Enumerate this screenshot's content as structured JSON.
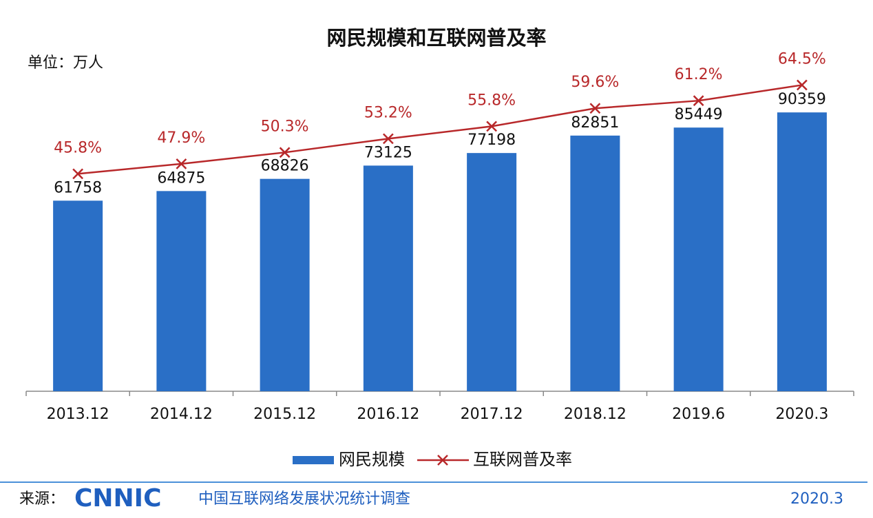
{
  "chart_data": {
    "type": "bar",
    "title": "网民规模和互联网普及率",
    "unit_label": "单位：万人",
    "categories": [
      "2013.12",
      "2014.12",
      "2015.12",
      "2016.12",
      "2017.12",
      "2018.12",
      "2019.6",
      "2020.3"
    ],
    "series": [
      {
        "name": "网民规模",
        "type": "bar",
        "color": "#2a6fc6",
        "values": [
          61758,
          64875,
          68826,
          73125,
          77198,
          82851,
          85449,
          90359
        ]
      },
      {
        "name": "互联网普及率",
        "type": "line",
        "axis": "y2",
        "color": "#b8282a",
        "values": [
          45.8,
          47.9,
          50.3,
          53.2,
          55.8,
          59.6,
          61.2,
          64.5
        ],
        "value_labels": [
          "45.8%",
          "47.9%",
          "50.3%",
          "53.2%",
          "55.8%",
          "59.6%",
          "61.2%",
          "64.5%"
        ]
      }
    ],
    "ylim": [
      0,
      100000
    ],
    "y2lim": [
      0,
      65
    ],
    "legend": "bottom",
    "source_prefix": "来源：",
    "source_logo": "CNNIC",
    "source_text": "中国互联网络发展状况统计调查",
    "date": "2020.3"
  }
}
